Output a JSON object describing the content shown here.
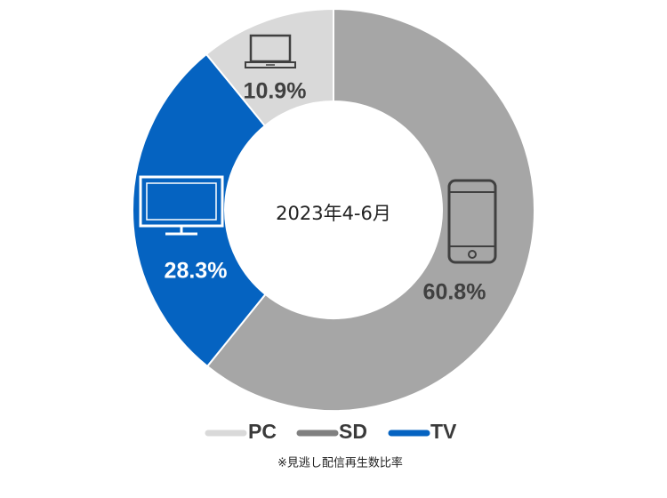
{
  "chart_data": {
    "type": "pie",
    "title": "",
    "center_label": "2023年4-6月",
    "slices": [
      {
        "key": "SD",
        "value": 60.8,
        "label": "60.8%",
        "color": "#a6a6a6",
        "label_color": "#404040",
        "icon": "smartphone-icon"
      },
      {
        "key": "TV",
        "value": 28.3,
        "label": "28.3%",
        "color": "#0563c1",
        "label_color": "#ffffff",
        "icon": "tv-icon"
      },
      {
        "key": "PC",
        "value": 10.9,
        "label": "10.9%",
        "color": "#d9d9d9",
        "label_color": "#404040",
        "icon": "laptop-icon"
      }
    ],
    "legend": {
      "placement": "bottom",
      "items": [
        {
          "label": "PC",
          "color": "#d9d9d9"
        },
        {
          "label": "SD",
          "color": "#808080"
        },
        {
          "label": "TV",
          "color": "#0563c1"
        }
      ]
    },
    "note": "※見逃し配信再生数比率"
  }
}
